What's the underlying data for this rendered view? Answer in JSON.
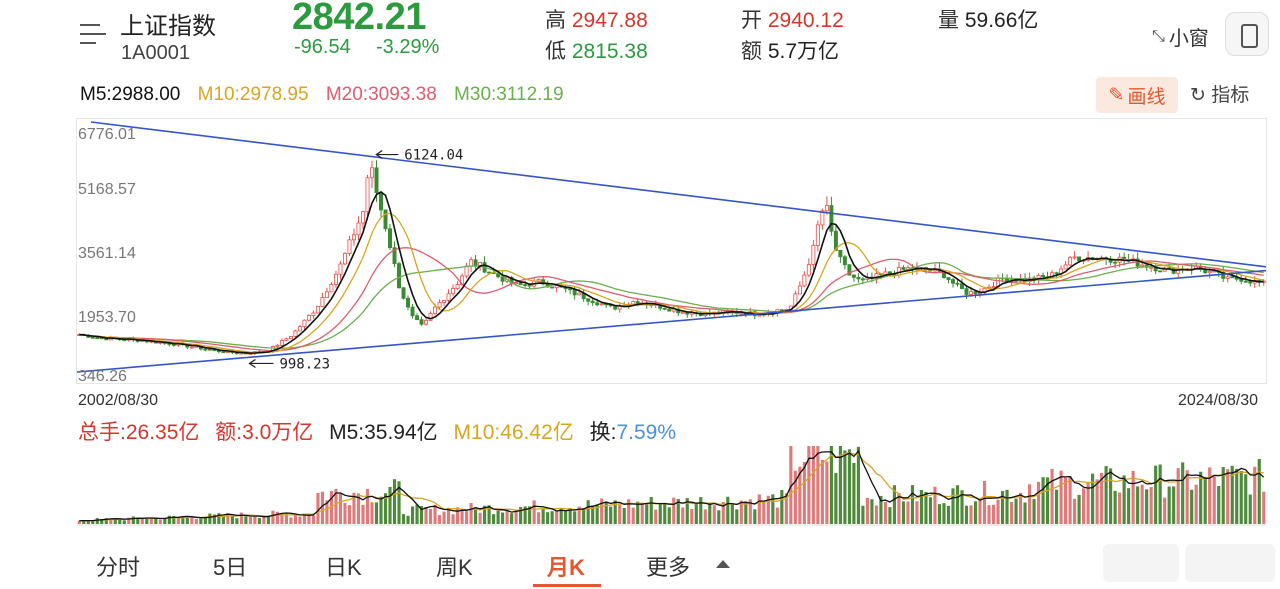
{
  "header": {
    "name": "上证指数",
    "code": "1A0001",
    "price": "2842.21",
    "change": "-96.54",
    "change_pct": "-3.29%",
    "high_label": "高",
    "high": "2947.88",
    "low_label": "低",
    "low": "2815.38",
    "open_label": "开",
    "open": "2940.12",
    "amount_label": "额",
    "amount": "5.7万亿",
    "volume_label": "量",
    "volume": "59.66亿",
    "float_window": "小窗"
  },
  "ma": {
    "m5": "M5:2988.00",
    "m10": "M10:2978.95",
    "m20": "M20:3093.38",
    "m30": "M30:3112.19"
  },
  "toolbar": {
    "draw_label": "画线",
    "indicator_label": "指标"
  },
  "chart_data": {
    "type": "candlestick",
    "period": "月K",
    "y_ticks": [
      "6776.01",
      "5168.57",
      "3561.14",
      "1953.70",
      "346.26"
    ],
    "ylim": [
      346.26,
      6776.01
    ],
    "x_start": "2002/08/30",
    "x_end": "2024/08/30",
    "annotations": {
      "peak": "6124.04",
      "trough": "998.23"
    },
    "colors": {
      "up": "#e8504a",
      "down": "#3a8a32",
      "m5": "#111111",
      "m10": "#d9a521",
      "m20": "#e05c6e",
      "m30": "#6ab04c",
      "trend": "#3356c8",
      "vol_up": "#e07a7a",
      "vol_down": "#4d8a3a"
    },
    "trend_upper": [
      [
        0,
        6776.01
      ],
      [
        1,
        3300
      ]
    ],
    "trend_lower": [
      [
        0,
        346.26
      ],
      [
        1,
        3200
      ]
    ],
    "price_path": [
      [
        0.0,
        1500
      ],
      [
        0.02,
        1400
      ],
      [
        0.05,
        1350
      ],
      [
        0.08,
        1250
      ],
      [
        0.1,
        1150
      ],
      [
        0.12,
        1050
      ],
      [
        0.14,
        1000
      ],
      [
        0.16,
        1080
      ],
      [
        0.18,
        1500
      ],
      [
        0.2,
        2200
      ],
      [
        0.22,
        3300
      ],
      [
        0.24,
        4800
      ],
      [
        0.245,
        6124.04
      ],
      [
        0.25,
        5400
      ],
      [
        0.26,
        4200
      ],
      [
        0.27,
        2800
      ],
      [
        0.28,
        2000
      ],
      [
        0.29,
        1700
      ],
      [
        0.3,
        2200
      ],
      [
        0.32,
        2900
      ],
      [
        0.33,
        3450
      ],
      [
        0.34,
        3300
      ],
      [
        0.35,
        3100
      ],
      [
        0.37,
        2800
      ],
      [
        0.39,
        2900
      ],
      [
        0.41,
        2700
      ],
      [
        0.43,
        2450
      ],
      [
        0.45,
        2200
      ],
      [
        0.47,
        2400
      ],
      [
        0.49,
        2250
      ],
      [
        0.51,
        2100
      ],
      [
        0.53,
        2050
      ],
      [
        0.55,
        2100
      ],
      [
        0.57,
        2050
      ],
      [
        0.58,
        2100
      ],
      [
        0.6,
        2200
      ],
      [
        0.61,
        2900
      ],
      [
        0.62,
        3800
      ],
      [
        0.625,
        4600
      ],
      [
        0.63,
        5000
      ],
      [
        0.635,
        4200
      ],
      [
        0.64,
        3600
      ],
      [
        0.65,
        3100
      ],
      [
        0.66,
        2900
      ],
      [
        0.68,
        3100
      ],
      [
        0.7,
        3250
      ],
      [
        0.72,
        3200
      ],
      [
        0.73,
        3100
      ],
      [
        0.74,
        2800
      ],
      [
        0.75,
        2600
      ],
      [
        0.76,
        2650
      ],
      [
        0.78,
        3000
      ],
      [
        0.8,
        2950
      ],
      [
        0.82,
        3050
      ],
      [
        0.83,
        3300
      ],
      [
        0.84,
        3550
      ],
      [
        0.86,
        3550
      ],
      [
        0.88,
        3500
      ],
      [
        0.9,
        3350
      ],
      [
        0.92,
        3200
      ],
      [
        0.94,
        3300
      ],
      [
        0.96,
        3100
      ],
      [
        0.97,
        2950
      ],
      [
        0.98,
        3000
      ],
      [
        1.0,
        2842.21
      ]
    ]
  },
  "volume": {
    "total_hands": "总手:26.35亿",
    "amount": "额:3.0万亿",
    "m5": "M5:35.94亿",
    "m10": "M10:46.42亿",
    "turnover_label": "换:",
    "turnover": "7.59%"
  },
  "tabs": [
    {
      "label": "分时"
    },
    {
      "label": "5日"
    },
    {
      "label": "日K"
    },
    {
      "label": "周K"
    },
    {
      "label": "月K"
    },
    {
      "label": "更多"
    }
  ]
}
